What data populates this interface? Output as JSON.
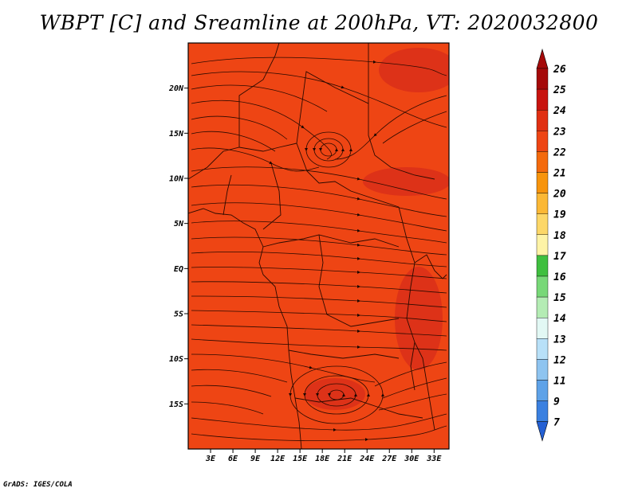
{
  "title": "WBPT [C] and Sreamline at 200hPa, VT: 2020032800",
  "credit": "GrADS: IGES/COLA",
  "map": {
    "lon_range": [
      0,
      35
    ],
    "lat_range": [
      -20,
      25
    ],
    "lat_ticks": [
      {
        "value": 20,
        "label": "20N"
      },
      {
        "value": 15,
        "label": "15N"
      },
      {
        "value": 10,
        "label": "10N"
      },
      {
        "value": 5,
        "label": "5N"
      },
      {
        "value": 0,
        "label": "EQ"
      },
      {
        "value": -5,
        "label": "5S"
      },
      {
        "value": -10,
        "label": "10S"
      },
      {
        "value": -15,
        "label": "15S"
      }
    ],
    "lon_ticks": [
      {
        "value": 3,
        "label": "3E"
      },
      {
        "value": 6,
        "label": "6E"
      },
      {
        "value": 9,
        "label": "9E"
      },
      {
        "value": 12,
        "label": "12E"
      },
      {
        "value": 15,
        "label": "15E"
      },
      {
        "value": 18,
        "label": "18E"
      },
      {
        "value": 21,
        "label": "21E"
      },
      {
        "value": 24,
        "label": "24E"
      },
      {
        "value": 27,
        "label": "27E"
      },
      {
        "value": 30,
        "label": "30E"
      },
      {
        "value": 33,
        "label": "33E"
      }
    ],
    "field_color": "#ee4514",
    "warm_patch_color": "#dd3218",
    "line_color": "#2a0a00"
  },
  "colorbar": {
    "levels": [
      "26",
      "25",
      "24",
      "23",
      "22",
      "21",
      "20",
      "19",
      "18",
      "17",
      "16",
      "15",
      "14",
      "13",
      "12",
      "11",
      "9",
      "7"
    ],
    "colors": [
      "#a50a0a",
      "#c8140f",
      "#e02f12",
      "#ee4514",
      "#f46a0d",
      "#f7940c",
      "#fbb835",
      "#fcd768",
      "#fef3a6",
      "#3fbf3f",
      "#78d878",
      "#b4ecb4",
      "#e2f8f4",
      "#b8e0f8",
      "#8ec4f0",
      "#5ea2e8",
      "#3a80e0",
      "#2460d4"
    ]
  }
}
